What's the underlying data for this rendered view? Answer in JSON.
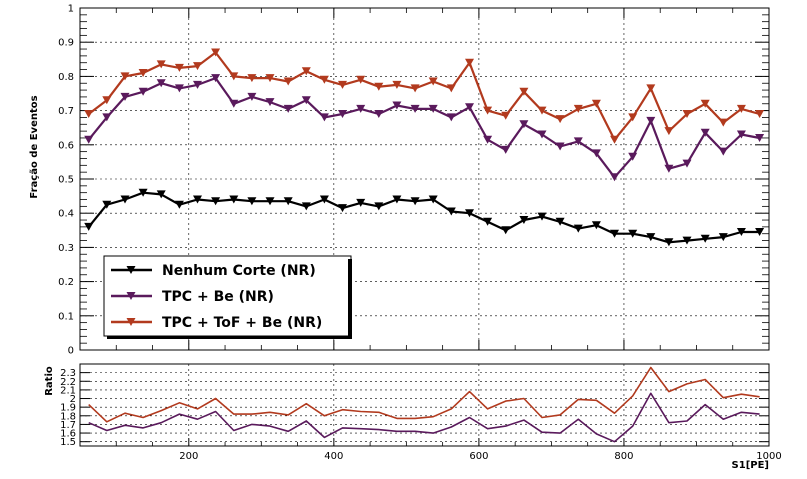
{
  "colors": {
    "black": "#000000",
    "purple": "#5a1a5c",
    "orange": "#b23a1e"
  },
  "chart_data": [
    {
      "type": "line",
      "ylabel": "Fração de Eventos",
      "xlim": [
        50,
        1000
      ],
      "ylim": [
        0,
        1
      ],
      "grid": true,
      "legend_position": "bottom-left",
      "yticks": [
        "0",
        "0.1",
        "0.2",
        "0.3",
        "0.4",
        "0.5",
        "0.6",
        "0.7",
        "0.8",
        "0.9",
        "1"
      ],
      "yticks_values": [
        0,
        0.1,
        0.2,
        0.3,
        0.4,
        0.5,
        0.6,
        0.7,
        0.8,
        0.9,
        1
      ],
      "x": [
        62,
        87,
        112,
        137,
        162,
        187,
        212,
        237,
        262,
        287,
        312,
        337,
        362,
        387,
        412,
        437,
        462,
        487,
        512,
        537,
        562,
        587,
        612,
        637,
        662,
        687,
        712,
        737,
        762,
        787,
        812,
        837,
        862,
        887,
        912,
        937,
        962,
        987
      ],
      "series": [
        {
          "name": "Nenhum Corte (NR)",
          "color": "#000000",
          "values": [
            0.36,
            0.425,
            0.44,
            0.46,
            0.455,
            0.425,
            0.44,
            0.435,
            0.44,
            0.435,
            0.435,
            0.435,
            0.42,
            0.44,
            0.415,
            0.43,
            0.42,
            0.44,
            0.435,
            0.44,
            0.405,
            0.4,
            0.375,
            0.35,
            0.38,
            0.39,
            0.375,
            0.355,
            0.365,
            0.34,
            0.34,
            0.33,
            0.315,
            0.32,
            0.325,
            0.33,
            0.345,
            0.345
          ]
        },
        {
          "name": "TPC + Be (NR)",
          "color": "#5a1a5c",
          "values": [
            0.615,
            0.68,
            0.74,
            0.755,
            0.78,
            0.765,
            0.775,
            0.795,
            0.72,
            0.74,
            0.725,
            0.705,
            0.73,
            0.68,
            0.69,
            0.705,
            0.69,
            0.715,
            0.705,
            0.705,
            0.68,
            0.71,
            0.615,
            0.585,
            0.66,
            0.63,
            0.595,
            0.61,
            0.575,
            0.505,
            0.565,
            0.67,
            0.53,
            0.545,
            0.635,
            0.58,
            0.63,
            0.62
          ]
        },
        {
          "name": "TPC + ToF + Be (NR)",
          "color": "#b23a1e",
          "values": [
            0.69,
            0.73,
            0.8,
            0.81,
            0.835,
            0.825,
            0.83,
            0.87,
            0.8,
            0.795,
            0.795,
            0.785,
            0.815,
            0.79,
            0.775,
            0.79,
            0.77,
            0.775,
            0.765,
            0.785,
            0.765,
            0.84,
            0.7,
            0.685,
            0.755,
            0.7,
            0.675,
            0.705,
            0.72,
            0.615,
            0.68,
            0.765,
            0.64,
            0.69,
            0.72,
            0.665,
            0.705,
            0.69
          ]
        }
      ]
    },
    {
      "type": "line",
      "ylabel": "Ratio",
      "xlabel": "S1[PE]",
      "xlim": [
        50,
        1000
      ],
      "ylim": [
        1.45,
        2.4
      ],
      "grid": true,
      "xticks": [
        "200",
        "400",
        "600",
        "800",
        "1000"
      ],
      "xticks_values": [
        200,
        400,
        600,
        800,
        1000
      ],
      "yticks": [
        "1.5",
        "1.6",
        "1.7",
        "1.8",
        "1.9",
        "2",
        "2.1",
        "2.2",
        "2.3"
      ],
      "yticks_values": [
        1.5,
        1.6,
        1.7,
        1.8,
        1.9,
        2.0,
        2.1,
        2.2,
        2.3
      ],
      "x": [
        62,
        87,
        112,
        137,
        162,
        187,
        212,
        237,
        262,
        287,
        312,
        337,
        362,
        387,
        412,
        437,
        462,
        487,
        512,
        537,
        562,
        587,
        612,
        637,
        662,
        687,
        712,
        737,
        762,
        787,
        812,
        837,
        862,
        887,
        912,
        937,
        962,
        987
      ],
      "series": [
        {
          "color": "#5a1a5c",
          "values": [
            1.72,
            1.63,
            1.69,
            1.66,
            1.72,
            1.82,
            1.76,
            1.85,
            1.63,
            1.7,
            1.68,
            1.62,
            1.74,
            1.55,
            1.66,
            1.65,
            1.64,
            1.62,
            1.62,
            1.6,
            1.67,
            1.78,
            1.65,
            1.68,
            1.75,
            1.61,
            1.6,
            1.76,
            1.59,
            1.5,
            1.68,
            2.06,
            1.72,
            1.74,
            1.93,
            1.76,
            1.84,
            1.82
          ]
        },
        {
          "color": "#b23a1e",
          "values": [
            1.93,
            1.73,
            1.83,
            1.78,
            1.86,
            1.95,
            1.88,
            2.0,
            1.82,
            1.82,
            1.84,
            1.81,
            1.94,
            1.8,
            1.87,
            1.85,
            1.84,
            1.77,
            1.77,
            1.79,
            1.88,
            2.08,
            1.88,
            1.97,
            2.0,
            1.78,
            1.81,
            1.99,
            1.98,
            1.83,
            2.03,
            2.36,
            2.08,
            2.17,
            2.22,
            2.01,
            2.05,
            2.02
          ]
        }
      ]
    }
  ]
}
